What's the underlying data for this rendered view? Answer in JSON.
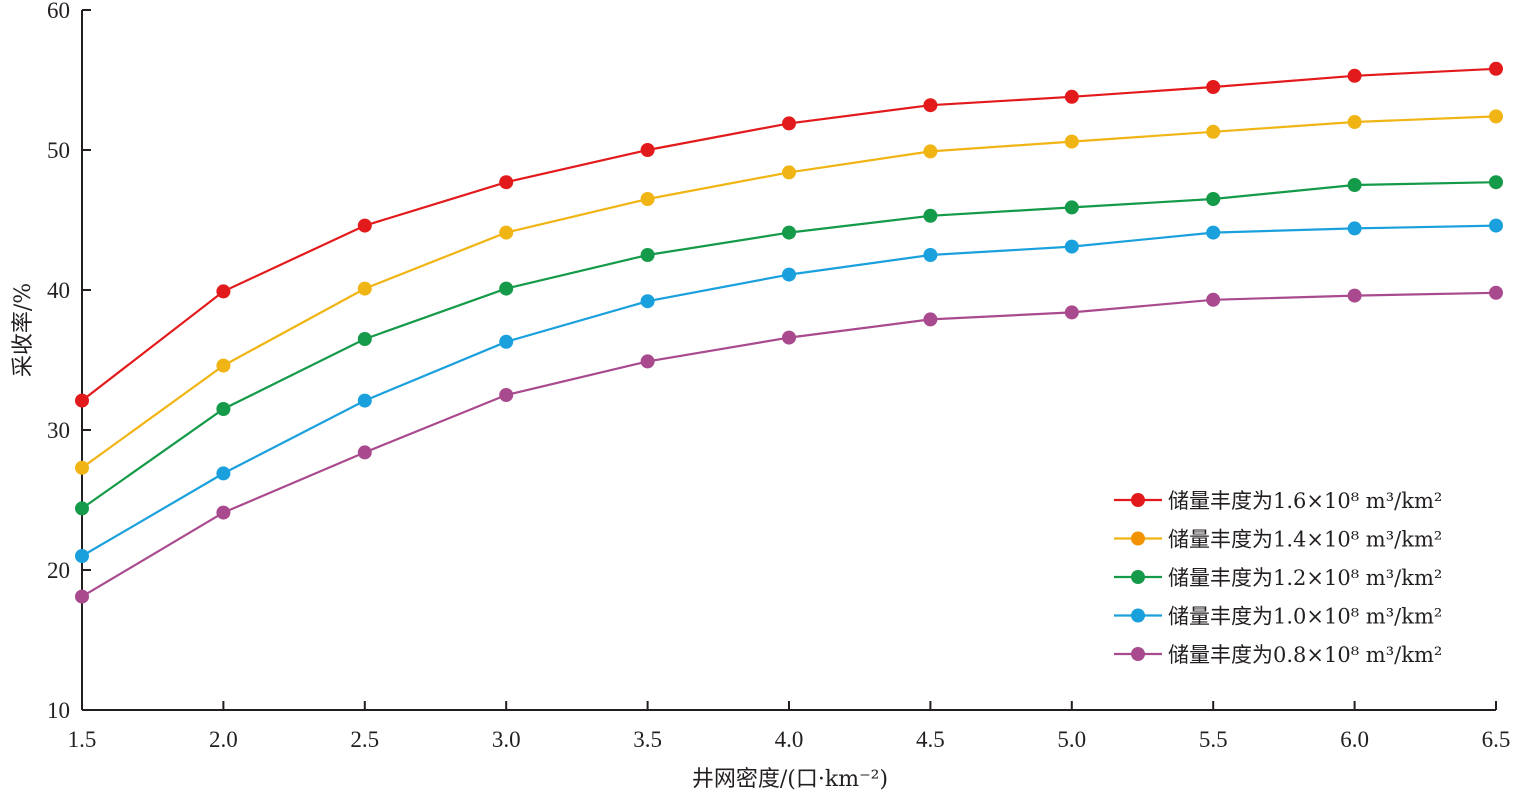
{
  "chart_data": {
    "type": "line",
    "xlabel": "井网密度/(口·km⁻²)",
    "ylabel": "采收率/%",
    "xlim": [
      1.5,
      6.5
    ],
    "ylim": [
      10,
      60
    ],
    "x_ticks": [
      "1.5",
      "2.0",
      "2.5",
      "3.0",
      "3.5",
      "4.0",
      "4.5",
      "5.0",
      "5.5",
      "6.0",
      "6.5"
    ],
    "y_ticks": [
      "10",
      "20",
      "30",
      "40",
      "50",
      "60"
    ],
    "x": [
      1.5,
      2.0,
      2.5,
      3.0,
      3.5,
      4.0,
      4.5,
      5.0,
      5.5,
      6.0,
      6.5
    ],
    "grid": false,
    "legend_position": "bottom-right",
    "series": [
      {
        "name": "储量丰度为1.6×10⁸ m³/km²",
        "color": "#e31a1c",
        "values": [
          32.1,
          39.9,
          44.6,
          47.7,
          50.0,
          51.9,
          53.2,
          53.8,
          54.5,
          55.3,
          55.8
        ]
      },
      {
        "name": "储量丰度为1.4×10⁸ m³/km²",
        "color": "#f0b514",
        "values": [
          27.3,
          34.6,
          40.1,
          44.1,
          46.5,
          48.4,
          49.9,
          50.6,
          51.3,
          52.0,
          52.4
        ]
      },
      {
        "name": "储量丰度为1.2×10⁸ m³/km²",
        "color": "#149a48",
        "values": [
          24.4,
          31.5,
          36.5,
          40.1,
          42.5,
          44.1,
          45.3,
          45.9,
          46.5,
          47.5,
          47.7
        ]
      },
      {
        "name": "储量丰度为1.0×10⁸ m³/km²",
        "color": "#1aa0dc",
        "values": [
          21.0,
          26.9,
          32.1,
          36.3,
          39.2,
          41.1,
          42.5,
          43.1,
          44.1,
          44.4,
          44.6
        ]
      },
      {
        "name": "储量丰度为0.8×10⁸ m³/km²",
        "color": "#a94a8e",
        "values": [
          18.1,
          24.1,
          28.4,
          32.5,
          34.9,
          36.6,
          37.9,
          38.4,
          39.3,
          39.6,
          39.8
        ]
      }
    ],
    "legend_marker_colors": [
      "#e31a1c",
      "#f39200",
      "#149a48",
      "#1aa0dc",
      "#a94a8e"
    ]
  }
}
